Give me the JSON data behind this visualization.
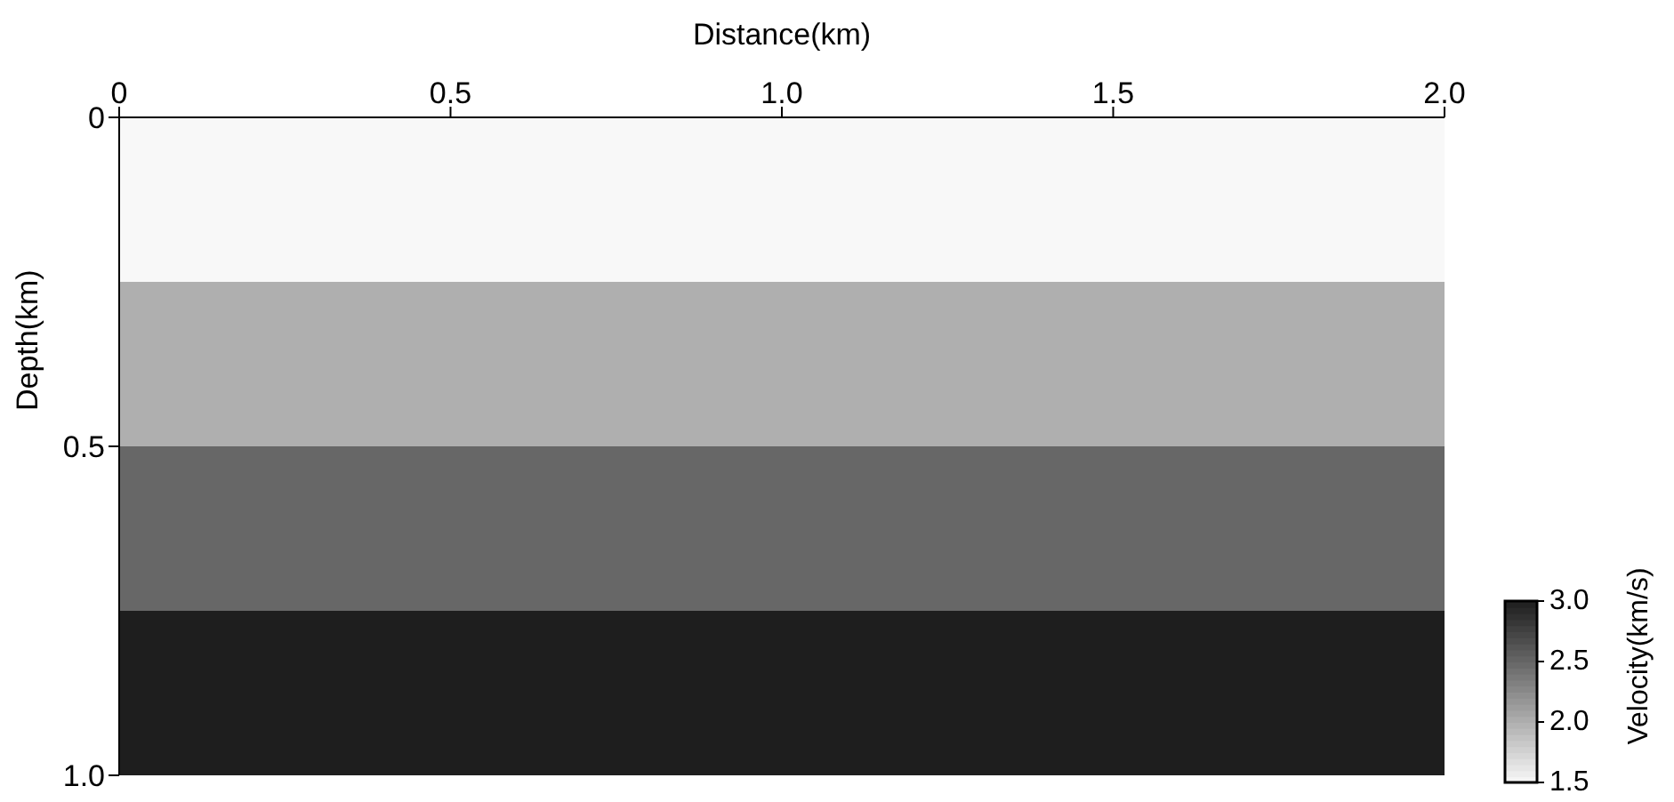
{
  "chart_data": {
    "type": "heatmap",
    "xlabel": "Distance(km)",
    "ylabel": "Depth(km)",
    "clabel": "Velocity(km/s)",
    "xlim": [
      0,
      2.0
    ],
    "xticks": [
      0,
      0.5,
      {
        "value": 1.0,
        "label": "1.0"
      },
      1.5,
      {
        "value": 2.0,
        "label": "2.0"
      }
    ],
    "ylim": [
      1.0,
      0
    ],
    "yticks": [
      0,
      0.5,
      {
        "value": 1.0,
        "label": "1.0"
      }
    ],
    "cells": [
      [
        1.5
      ],
      [
        2.0
      ],
      [
        2.5
      ],
      [
        3.0
      ]
    ],
    "clim": [
      1.5,
      3.0
    ],
    "cticks": [
      1.5,
      {
        "value": 2.0,
        "label": "2.0"
      },
      2.5,
      {
        "value": 3.0,
        "label": "3.0"
      }
    ]
  }
}
